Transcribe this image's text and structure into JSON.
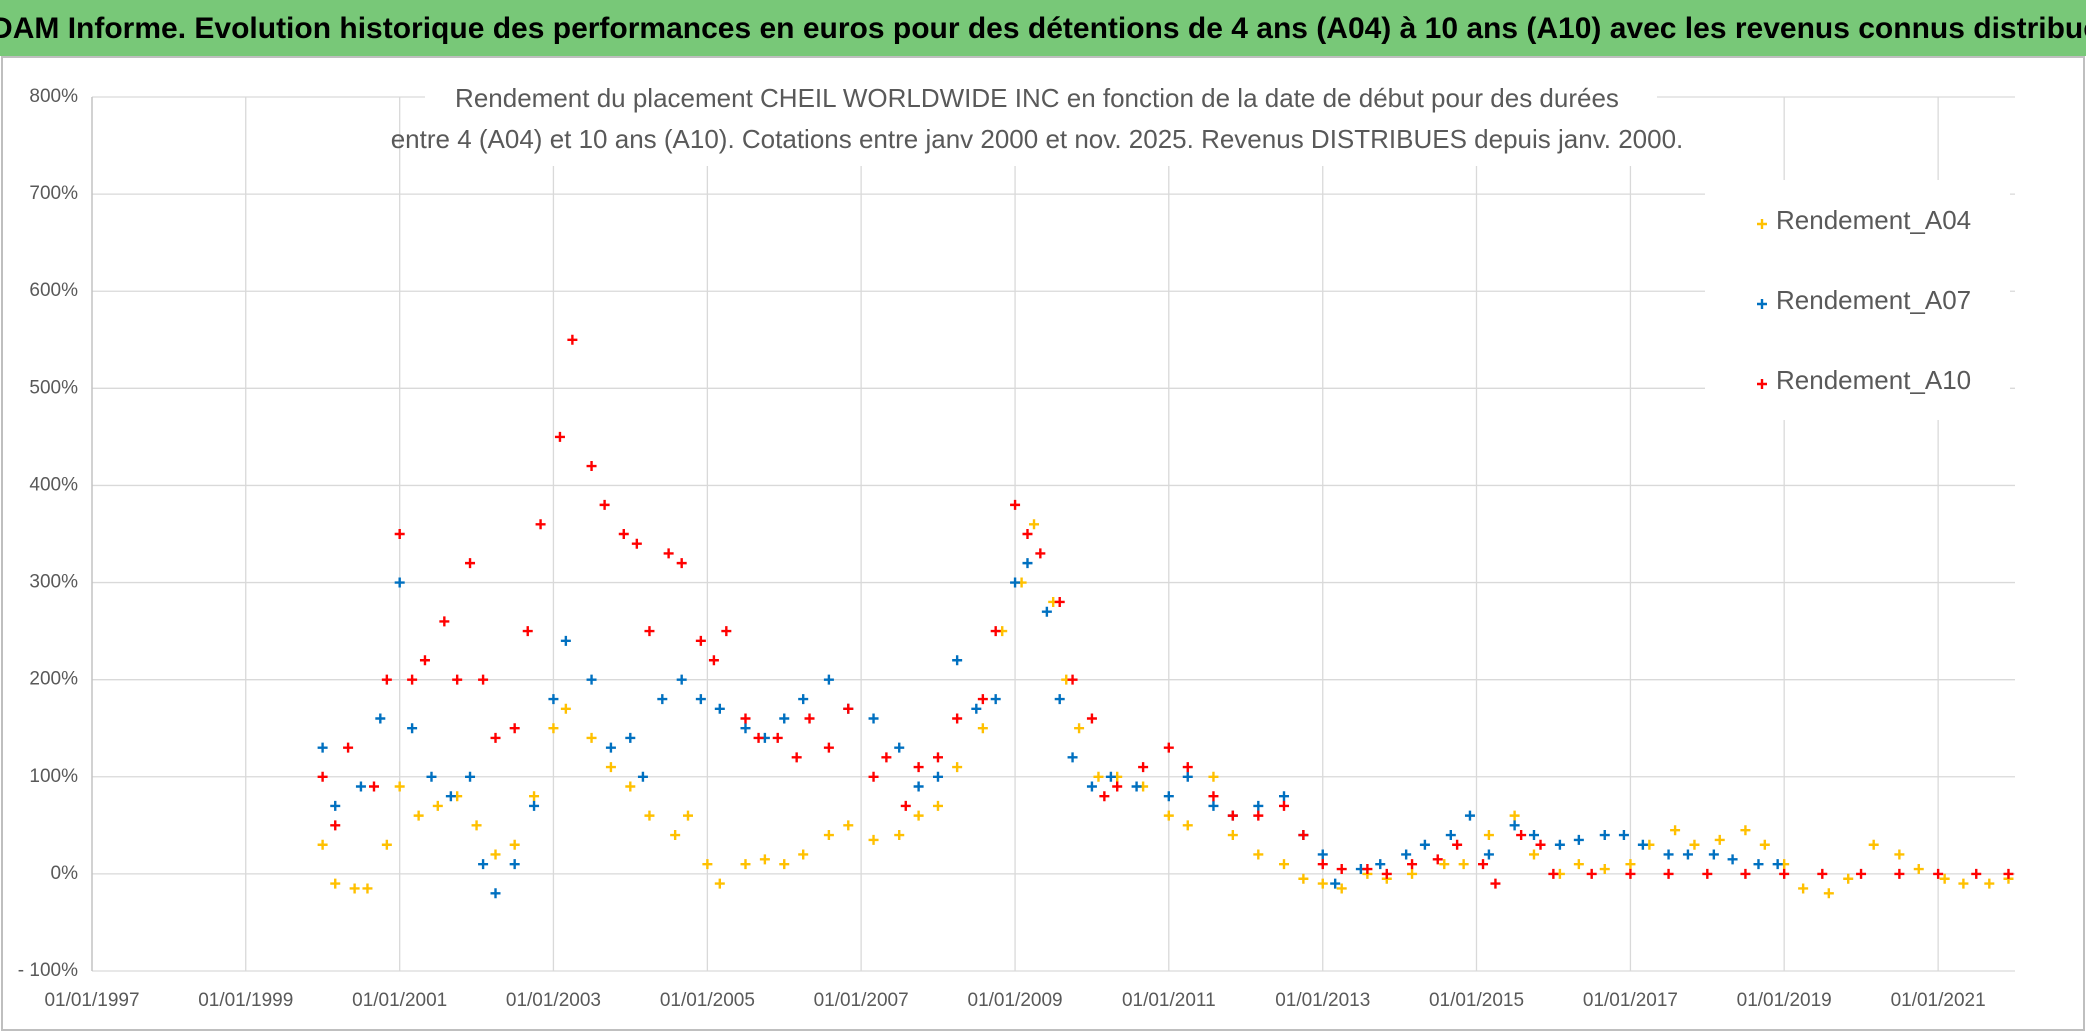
{
  "header": {
    "title": "ADAM Informe. Evolution historique des performances en euros pour des détentions de 4 ans (A04) à 10 ans (A10) avec les revenus connus distribués"
  },
  "chart_data": {
    "type": "scatter",
    "title": [
      "Rendement du placement CHEIL WORLDWIDE INC en fonction de la date de début pour des durées",
      "entre 4 (A04) et 10 ans (A10). Cotations entre janv 2000 et nov. 2025. Revenus DISTRIBUES depuis janv. 2000."
    ],
    "xlim": [
      "1997-01-01",
      "2022-01-01"
    ],
    "xticks": [
      {
        "value": "1997-01-01",
        "label": "01/01/1997"
      },
      {
        "value": "1999-01-01",
        "label": "01/01/1999"
      },
      {
        "value": "2001-01-01",
        "label": "01/01/2001"
      },
      {
        "value": "2003-01-01",
        "label": "01/01/2003"
      },
      {
        "value": "2005-01-01",
        "label": "01/01/2005"
      },
      {
        "value": "2007-01-01",
        "label": "01/01/2007"
      },
      {
        "value": "2009-01-01",
        "label": "01/01/2009"
      },
      {
        "value": "2011-01-01",
        "label": "01/01/2011"
      },
      {
        "value": "2013-01-01",
        "label": "01/01/2013"
      },
      {
        "value": "2015-01-01",
        "label": "01/01/2015"
      },
      {
        "value": "2017-01-01",
        "label": "01/01/2017"
      },
      {
        "value": "2019-01-01",
        "label": "01/01/2019"
      },
      {
        "value": "2021-01-01",
        "label": "01/01/2021"
      }
    ],
    "ylim": [
      -100,
      800
    ],
    "yticks": [
      {
        "value": -100,
        "label": "- 100%"
      },
      {
        "value": 0,
        "label": "0%"
      },
      {
        "value": 100,
        "label": "100%"
      },
      {
        "value": 200,
        "label": "200%"
      },
      {
        "value": 300,
        "label": "300%"
      },
      {
        "value": 400,
        "label": "400%"
      },
      {
        "value": 500,
        "label": "500%"
      },
      {
        "value": 600,
        "label": "600%"
      },
      {
        "value": 700,
        "label": "700%"
      },
      {
        "value": 800,
        "label": "800%"
      }
    ],
    "grid": true,
    "legend": "right",
    "series": [
      {
        "name": "Rendement_A04",
        "color": "#ffc000",
        "x": [
          "2000-01-01",
          "2000-03-01",
          "2000-06-01",
          "2000-08-01",
          "2000-11-01",
          "2001-01-01",
          "2001-04-01",
          "2001-07-01",
          "2001-10-01",
          "2002-01-01",
          "2002-04-01",
          "2002-07-01",
          "2002-10-01",
          "2003-01-01",
          "2003-03-01",
          "2003-07-01",
          "2003-10-01",
          "2004-01-01",
          "2004-04-01",
          "2004-08-01",
          "2004-10-01",
          "2005-01-01",
          "2005-03-01",
          "2005-07-01",
          "2005-10-01",
          "2006-01-01",
          "2006-04-01",
          "2006-08-01",
          "2006-11-01",
          "2007-03-01",
          "2007-07-01",
          "2007-10-01",
          "2008-01-01",
          "2008-04-01",
          "2008-08-01",
          "2008-11-01",
          "2009-02-01",
          "2009-04-01",
          "2009-07-01",
          "2009-09-01",
          "2009-11-01",
          "2010-02-01",
          "2010-05-01",
          "2010-09-01",
          "2011-01-01",
          "2011-04-01",
          "2011-08-01",
          "2011-11-01",
          "2012-03-01",
          "2012-07-01",
          "2012-10-01",
          "2013-01-01",
          "2013-04-01",
          "2013-08-01",
          "2013-11-01",
          "2014-03-01",
          "2014-08-01",
          "2014-11-01",
          "2015-03-01",
          "2015-07-01",
          "2015-10-01",
          "2016-02-01",
          "2016-05-01",
          "2016-09-01",
          "2017-01-01",
          "2017-04-01",
          "2017-08-01",
          "2017-11-01",
          "2018-03-01",
          "2018-07-01",
          "2018-10-01",
          "2019-01-01",
          "2019-04-01",
          "2019-08-01",
          "2019-11-01",
          "2020-03-01",
          "2020-07-01",
          "2020-10-01",
          "2021-02-01",
          "2021-05-01",
          "2021-09-01",
          "2021-12-01"
        ],
        "values": [
          30,
          -10,
          -15,
          -15,
          30,
          90,
          60,
          70,
          80,
          50,
          20,
          30,
          80,
          150,
          170,
          140,
          110,
          90,
          60,
          40,
          60,
          10,
          -10,
          10,
          15,
          10,
          20,
          40,
          50,
          35,
          40,
          60,
          70,
          110,
          150,
          250,
          300,
          360,
          280,
          200,
          150,
          100,
          100,
          90,
          60,
          50,
          100,
          40,
          20,
          10,
          -5,
          -10,
          -15,
          0,
          -5,
          0,
          10,
          10,
          40,
          60,
          20,
          0,
          10,
          5,
          10,
          30,
          45,
          30,
          35,
          45,
          30,
          10,
          -15,
          -20,
          -5,
          30,
          20,
          5,
          -5,
          -10,
          -10,
          -5
        ]
      },
      {
        "name": "Rendement_A07",
        "color": "#0070c0",
        "x": [
          "2000-01-01",
          "2000-03-01",
          "2000-07-01",
          "2000-10-01",
          "2001-01-01",
          "2001-03-01",
          "2001-06-01",
          "2001-09-01",
          "2001-12-01",
          "2002-02-01",
          "2002-04-01",
          "2002-07-01",
          "2002-10-01",
          "2003-01-01",
          "2003-03-01",
          "2003-07-01",
          "2003-10-01",
          "2004-01-01",
          "2004-03-01",
          "2004-06-01",
          "2004-09-01",
          "2004-12-01",
          "2005-03-01",
          "2005-07-01",
          "2005-10-01",
          "2006-01-01",
          "2006-04-01",
          "2006-08-01",
          "2006-11-01",
          "2007-03-01",
          "2007-07-01",
          "2007-10-01",
          "2008-01-01",
          "2008-04-01",
          "2008-07-01",
          "2008-10-01",
          "2009-01-01",
          "2009-03-01",
          "2009-06-01",
          "2009-08-01",
          "2009-10-01",
          "2010-01-01",
          "2010-04-01",
          "2010-08-01",
          "2011-01-01",
          "2011-04-01",
          "2011-08-01",
          "2011-11-01",
          "2012-03-01",
          "2012-07-01",
          "2012-10-01",
          "2013-01-01",
          "2013-03-01",
          "2013-07-01",
          "2013-10-01",
          "2014-02-01",
          "2014-05-01",
          "2014-09-01",
          "2014-12-01",
          "2015-03-01",
          "2015-07-01",
          "2015-10-01",
          "2016-02-01",
          "2016-05-01",
          "2016-09-01",
          "2016-12-01",
          "2017-03-01",
          "2017-07-01",
          "2017-10-01",
          "2018-02-01",
          "2018-05-01",
          "2018-09-01",
          "2018-12-01"
        ],
        "values": [
          130,
          70,
          90,
          160,
          300,
          150,
          100,
          80,
          100,
          10,
          -20,
          10,
          70,
          180,
          240,
          200,
          130,
          140,
          100,
          180,
          200,
          180,
          170,
          150,
          140,
          160,
          180,
          200,
          170,
          160,
          130,
          90,
          100,
          220,
          170,
          180,
          300,
          320,
          270,
          180,
          120,
          90,
          100,
          90,
          80,
          100,
          70,
          60,
          70,
          80,
          40,
          20,
          -10,
          5,
          10,
          20,
          30,
          40,
          60,
          20,
          50,
          40,
          30,
          35,
          40,
          40,
          30,
          20,
          20,
          20,
          15,
          10,
          10
        ]
      },
      {
        "name": "Rendement_A10",
        "color": "#ff0000",
        "x": [
          "2000-01-01",
          "2000-03-01",
          "2000-05-01",
          "2000-09-01",
          "2000-11-01",
          "2001-01-01",
          "2001-03-01",
          "2001-05-01",
          "2001-08-01",
          "2001-10-01",
          "2001-12-01",
          "2002-02-01",
          "2002-04-01",
          "2002-07-01",
          "2002-09-01",
          "2002-11-01",
          "2003-02-01",
          "2003-04-01",
          "2003-07-01",
          "2003-09-01",
          "2003-12-01",
          "2004-02-01",
          "2004-04-01",
          "2004-07-01",
          "2004-09-01",
          "2004-12-01",
          "2005-02-01",
          "2005-04-01",
          "2005-07-01",
          "2005-09-01",
          "2005-12-01",
          "2006-03-01",
          "2006-05-01",
          "2006-08-01",
          "2006-11-01",
          "2007-03-01",
          "2007-05-01",
          "2007-08-01",
          "2007-10-01",
          "2008-01-01",
          "2008-04-01",
          "2008-08-01",
          "2008-10-01",
          "2009-01-01",
          "2009-03-01",
          "2009-05-01",
          "2009-08-01",
          "2009-10-01",
          "2010-01-01",
          "2010-03-01",
          "2010-05-01",
          "2010-09-01",
          "2011-01-01",
          "2011-04-01",
          "2011-08-01",
          "2011-11-01",
          "2012-03-01",
          "2012-07-01",
          "2012-10-01",
          "2013-01-01",
          "2013-04-01",
          "2013-08-01",
          "2013-11-01",
          "2014-03-01",
          "2014-07-01",
          "2014-10-01",
          "2015-02-01",
          "2015-04-01",
          "2015-08-01",
          "2015-11-01",
          "2016-01-01",
          "2016-07-01",
          "2017-01-01",
          "2017-07-01",
          "2018-01-01",
          "2018-07-01",
          "2019-01-01",
          "2019-07-01",
          "2020-01-01",
          "2020-07-01",
          "2021-01-01",
          "2021-07-01",
          "2021-12-01"
        ],
        "values": [
          100,
          50,
          130,
          90,
          200,
          350,
          200,
          220,
          260,
          200,
          320,
          200,
          140,
          150,
          250,
          360,
          450,
          550,
          420,
          380,
          350,
          340,
          250,
          330,
          320,
          240,
          220,
          250,
          160,
          140,
          140,
          120,
          160,
          130,
          170,
          100,
          120,
          70,
          110,
          120,
          160,
          180,
          250,
          380,
          350,
          330,
          280,
          200,
          160,
          80,
          90,
          110,
          130,
          110,
          80,
          60,
          60,
          70,
          40,
          10,
          5,
          5,
          0,
          10,
          15,
          30,
          10,
          -10,
          40,
          30,
          0,
          0,
          0,
          0,
          0,
          0,
          0,
          0,
          0,
          0,
          0,
          0,
          0
        ]
      }
    ]
  }
}
